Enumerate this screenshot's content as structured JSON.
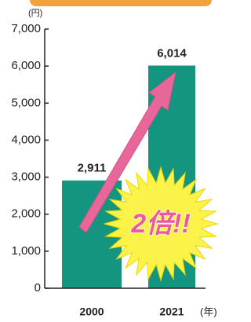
{
  "chart_data": {
    "type": "bar",
    "y_label": "(円)",
    "x_label": "(年)",
    "categories": [
      "2000",
      "2021"
    ],
    "values": [
      2911,
      6014
    ],
    "value_labels": [
      "2,911",
      "6,014"
    ],
    "color": "#14957f",
    "ylim": [
      0,
      7000
    ],
    "yticks": [
      0,
      {
        "value": 1000,
        "label": "1,000"
      },
      {
        "value": 2000,
        "label": "2,000"
      },
      {
        "value": 3000,
        "label": "3,000"
      },
      {
        "value": 4000,
        "label": "4,000"
      },
      {
        "value": 5000,
        "label": "5,000"
      },
      {
        "value": 6000,
        "label": "6,000"
      },
      {
        "value": 7000,
        "label": "7,000"
      }
    ],
    "annotation": "2倍!!"
  }
}
